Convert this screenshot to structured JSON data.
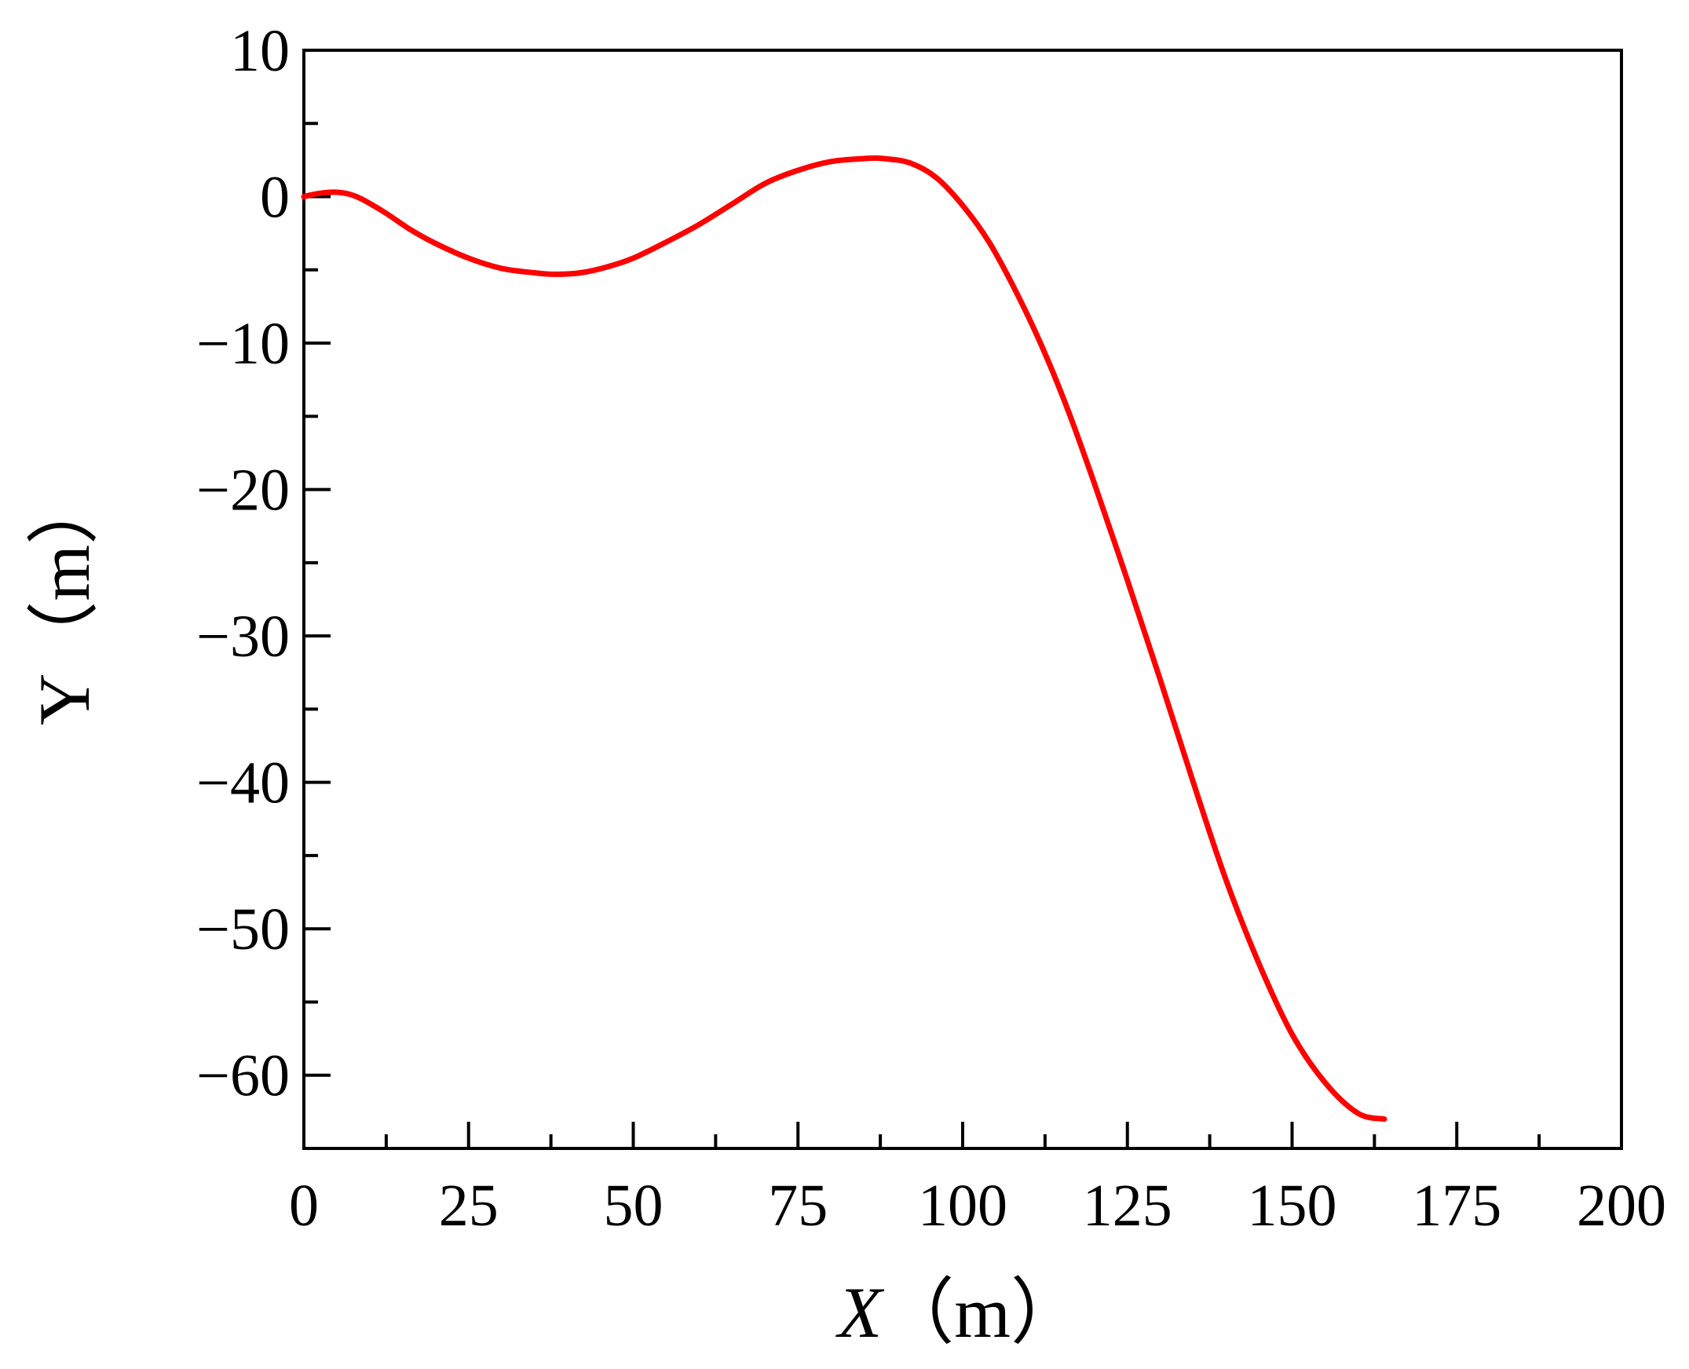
{
  "chart_data": {
    "type": "line",
    "title": "",
    "xlabel_var": "X",
    "xlabel_unit": "（m）",
    "ylabel": "Y（m）",
    "xlim": [
      0,
      200
    ],
    "ylim": [
      -65,
      10
    ],
    "x_ticks": [
      0,
      25,
      50,
      75,
      100,
      125,
      150,
      175,
      200
    ],
    "x_tick_labels": [
      "0",
      "25",
      "50",
      "75",
      "100",
      "125",
      "150",
      "175",
      "200"
    ],
    "y_ticks": [
      10,
      0,
      -10,
      -20,
      -30,
      -40,
      -50,
      -60
    ],
    "y_tick_labels": [
      "10",
      "0",
      "−10",
      "−20",
      "−30",
      "−40",
      "−50",
      "−60"
    ],
    "grid": false,
    "legend": "none",
    "series": [
      {
        "color": "#ff0000",
        "x": [
          0,
          2,
          5,
          8,
          12,
          16,
          20,
          25,
          30,
          35,
          38,
          42,
          46,
          50,
          55,
          60,
          65,
          70,
          75,
          80,
          85,
          88,
          92,
          96,
          100,
          104,
          108,
          112,
          116,
          120,
          125,
          130,
          135,
          140,
          145,
          150,
          155,
          160,
          164
        ],
        "y": [
          0,
          0.2,
          0.3,
          0,
          -1.0,
          -2.2,
          -3.2,
          -4.2,
          -4.9,
          -5.2,
          -5.3,
          -5.2,
          -4.8,
          -4.2,
          -3.1,
          -1.9,
          -0.5,
          0.9,
          1.8,
          2.4,
          2.6,
          2.6,
          2.3,
          1.3,
          -0.6,
          -3.1,
          -6.4,
          -10.2,
          -14.6,
          -19.6,
          -26.2,
          -33.0,
          -40.0,
          -46.7,
          -52.4,
          -57.2,
          -60.5,
          -62.6,
          -63.0
        ]
      }
    ]
  }
}
